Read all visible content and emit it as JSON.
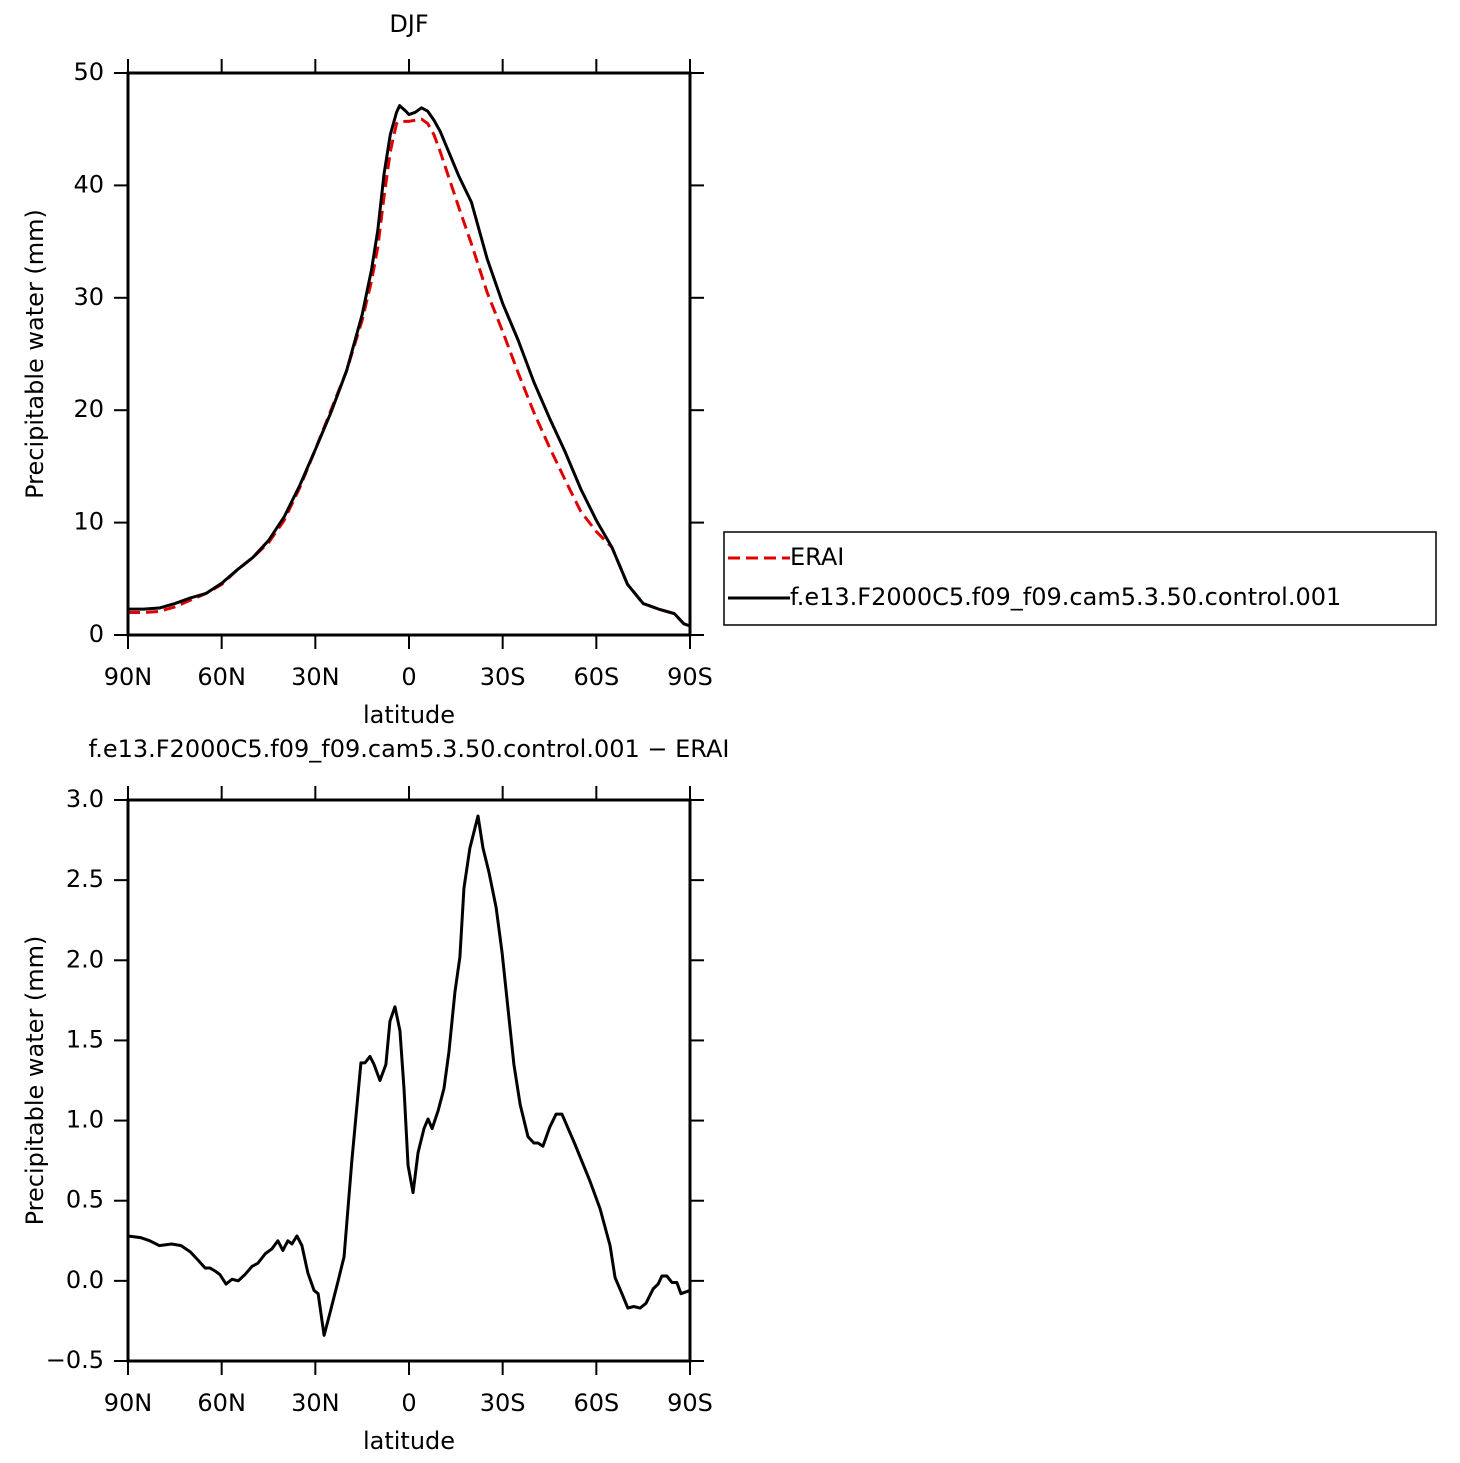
{
  "chart_data": [
    {
      "type": "line",
      "title": "DJF",
      "xlabel": "latitude",
      "ylabel": "Precipitable water (mm)",
      "x": [
        90,
        85,
        80,
        75,
        70,
        65,
        60,
        55,
        50,
        45,
        40,
        35,
        30,
        25,
        20,
        15,
        12,
        10,
        8,
        6,
        4,
        3,
        1,
        0,
        -2,
        -4,
        -6,
        -8,
        -10,
        -13,
        -16,
        -20,
        -25,
        -30,
        -35,
        -40,
        -45,
        -50,
        -55,
        -60,
        -65,
        -70,
        -75,
        -80,
        -85,
        -88,
        -90
      ],
      "series": [
        {
          "name": "ERAI",
          "color": "#e00000",
          "linestyle": "dashed",
          "values": [
            2.0,
            2.0,
            2.1,
            2.5,
            3.1,
            3.7,
            4.5,
            5.8,
            6.9,
            8.2,
            10.2,
            13.1,
            16.5,
            20,
            23.5,
            28,
            31.5,
            34.5,
            39,
            43,
            45.5,
            45.7,
            45.7,
            45.7,
            45.8,
            45.9,
            45.5,
            44.5,
            43,
            40.5,
            38,
            34.8,
            30.5,
            27,
            23.3,
            19.8,
            16.7,
            13.8,
            11,
            9.2,
            7.8,
            4.5,
            2.8,
            2.3,
            1.9,
            1.0,
            0.8
          ]
        },
        {
          "name": "f.e13.F2000C5.f09_f09.cam5.3.50.control.001",
          "color": "#000000",
          "linestyle": "solid",
          "values": [
            2.3,
            2.3,
            2.4,
            2.8,
            3.3,
            3.7,
            4.6,
            5.8,
            6.9,
            8.4,
            10.5,
            13.3,
            16.5,
            19.8,
            23.5,
            28.5,
            32.5,
            36,
            41,
            44.5,
            46.5,
            47.1,
            46.6,
            46.3,
            46.5,
            46.9,
            46.6,
            45.8,
            44.8,
            42.8,
            40.8,
            38.5,
            33.5,
            29.5,
            26.2,
            22.5,
            19.3,
            16.3,
            13,
            10.2,
            7.8,
            4.5,
            2.8,
            2.3,
            1.9,
            1.0,
            0.8
          ]
        }
      ],
      "xlim": [
        90,
        -90
      ],
      "xticks": [
        {
          "value": 90,
          "label": "90N"
        },
        {
          "value": 60,
          "label": "60N"
        },
        {
          "value": 30,
          "label": "30N"
        },
        0,
        {
          "value": -30,
          "label": "30S"
        },
        {
          "value": -60,
          "label": "60S"
        },
        {
          "value": -90,
          "label": "90S"
        }
      ],
      "ylim": [
        0,
        50
      ],
      "yticks": [
        0,
        10,
        20,
        30,
        40,
        50
      ],
      "legend": "outside-right"
    },
    {
      "type": "line",
      "title": "f.e13.F2000C5.f09_f09.cam5.3.50.control.001 − ERAI",
      "xlabel": "latitude",
      "ylabel": "Precipitable water (mm)",
      "x": [
        90,
        86,
        83,
        80,
        76,
        73,
        70,
        67.6,
        65.3,
        63.7,
        62,
        60.6,
        58.6,
        56.7,
        54.7,
        52.5,
        50.3,
        48.4,
        46,
        43.9,
        42,
        40.4,
        38.8,
        37.5,
        35.9,
        34.3,
        32.4,
        30.4,
        29.1,
        27.2,
        25.3,
        22.7,
        20.8,
        18.3,
        15.4,
        14.1,
        12.5,
        11.2,
        9.3,
        7.4,
        6.1,
        4.5,
        2.9,
        1.6,
        0.3,
        -1.3,
        -2.9,
        -4.8,
        -6.1,
        -7.4,
        -9.3,
        -11.2,
        -12.8,
        -14.7,
        -16.3,
        -17.6,
        -19.5,
        -22.1,
        -23.7,
        -25.6,
        -27.9,
        -29.8,
        -31.7,
        -33.6,
        -35.6,
        -38.1,
        -40,
        -41.3,
        -42.9,
        -45.1,
        -47.1,
        -49,
        -53.2,
        -58,
        -61.2,
        -64.4,
        -66,
        -68.2,
        -70.1,
        -72,
        -74,
        -75.9,
        -78.2,
        -79.8,
        -81,
        -82.6,
        -84.2,
        -85.8,
        -87.1,
        -90
      ],
      "color": "#000000",
      "values": [
        0.28,
        0.27,
        0.25,
        0.22,
        0.23,
        0.22,
        0.18,
        0.13,
        0.08,
        0.08,
        0.06,
        0.04,
        -0.02,
        0.01,
        0.0,
        0.04,
        0.09,
        0.11,
        0.17,
        0.2,
        0.25,
        0.19,
        0.25,
        0.23,
        0.28,
        0.22,
        0.05,
        -0.06,
        -0.08,
        -0.34,
        -0.2,
        0.0,
        0.15,
        0.75,
        1.36,
        1.36,
        1.4,
        1.35,
        1.25,
        1.35,
        1.62,
        1.71,
        1.56,
        1.2,
        0.72,
        0.55,
        0.8,
        0.95,
        1.01,
        0.95,
        1.06,
        1.2,
        1.43,
        1.8,
        2.02,
        2.45,
        2.7,
        2.9,
        2.7,
        2.55,
        2.33,
        2.05,
        1.7,
        1.35,
        1.1,
        0.9,
        0.86,
        0.86,
        0.84,
        0.96,
        1.04,
        1.04,
        0.85,
        0.62,
        0.45,
        0.22,
        0.02,
        -0.08,
        -0.17,
        -0.16,
        -0.17,
        -0.14,
        -0.05,
        -0.02,
        0.03,
        0.03,
        -0.01,
        -0.01,
        -0.08,
        -0.06
      ],
      "xlim": [
        90,
        -90
      ],
      "xticks": [
        {
          "value": 90,
          "label": "90N"
        },
        {
          "value": 60,
          "label": "60N"
        },
        {
          "value": 30,
          "label": "30N"
        },
        0,
        {
          "value": -30,
          "label": "30S"
        },
        {
          "value": -60,
          "label": "60S"
        },
        {
          "value": -90,
          "label": "90S"
        }
      ],
      "ylim": [
        -0.5,
        3.0
      ],
      "yticks": [
        {
          "value": -0.5,
          "label": "−0.5"
        },
        {
          "value": 0,
          "label": "0.0"
        },
        0.5,
        {
          "value": 1,
          "label": "1.0"
        },
        1.5,
        {
          "value": 2,
          "label": "2.0"
        },
        2.5,
        {
          "value": 3,
          "label": "3.0"
        }
      ]
    }
  ]
}
